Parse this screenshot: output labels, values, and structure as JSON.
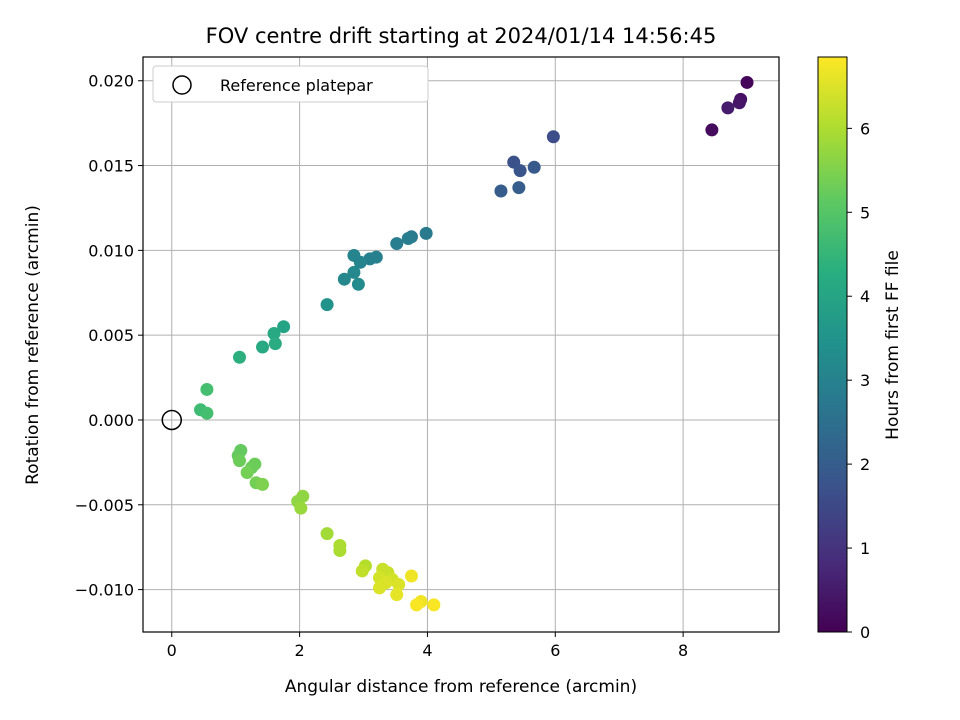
{
  "chart_data": {
    "type": "scatter",
    "title": "FOV centre drift starting at 2024/01/14 14:56:45",
    "xlabel": "Angular distance from reference (arcmin)",
    "ylabel": "Rotation from reference (arcmin)",
    "xlim": [
      -0.45,
      9.5
    ],
    "ylim": [
      -0.0125,
      0.0214
    ],
    "x_ticks": [
      0,
      2,
      4,
      6,
      8
    ],
    "y_ticks": [
      -0.01,
      -0.005,
      0.0,
      0.005,
      0.01,
      0.015,
      0.02
    ],
    "y_tick_labels": [
      "−0.010",
      "−0.005",
      "0.000",
      "0.005",
      "0.010",
      "0.015",
      "0.020"
    ],
    "grid": true,
    "legend": {
      "position": "top-left",
      "entries": [
        {
          "label": "Reference platepar",
          "marker": "open-circle",
          "x": 0,
          "y": 0
        }
      ]
    },
    "colorbar": {
      "label": "Hours from first FF file",
      "min": 0,
      "max": 6.85,
      "ticks": [
        0,
        1,
        2,
        3,
        4,
        5,
        6
      ],
      "colormap": "viridis"
    },
    "series": [
      {
        "points": [
          {
            "x": 9.0,
            "y": 0.0199,
            "c": 0.1
          },
          {
            "x": 8.9,
            "y": 0.0189,
            "c": 0.3
          },
          {
            "x": 8.88,
            "y": 0.0187,
            "c": 0.4
          },
          {
            "x": 8.7,
            "y": 0.0184,
            "c": 0.5
          },
          {
            "x": 8.45,
            "y": 0.0171,
            "c": 0.2
          },
          {
            "x": 5.97,
            "y": 0.0167,
            "c": 1.6
          },
          {
            "x": 5.35,
            "y": 0.0152,
            "c": 1.7
          },
          {
            "x": 5.45,
            "y": 0.0147,
            "c": 1.8
          },
          {
            "x": 5.67,
            "y": 0.0149,
            "c": 1.9
          },
          {
            "x": 5.15,
            "y": 0.0135,
            "c": 2.0
          },
          {
            "x": 5.43,
            "y": 0.0137,
            "c": 2.0
          },
          {
            "x": 3.98,
            "y": 0.011,
            "c": 2.8
          },
          {
            "x": 3.75,
            "y": 0.0108,
            "c": 2.8
          },
          {
            "x": 3.7,
            "y": 0.0107,
            "c": 2.9
          },
          {
            "x": 3.52,
            "y": 0.0104,
            "c": 2.9
          },
          {
            "x": 3.2,
            "y": 0.0096,
            "c": 3.0
          },
          {
            "x": 3.1,
            "y": 0.0095,
            "c": 3.0
          },
          {
            "x": 2.85,
            "y": 0.0097,
            "c": 3.1
          },
          {
            "x": 2.95,
            "y": 0.0093,
            "c": 3.1
          },
          {
            "x": 2.85,
            "y": 0.0087,
            "c": 3.2
          },
          {
            "x": 2.7,
            "y": 0.0083,
            "c": 3.2
          },
          {
            "x": 2.92,
            "y": 0.008,
            "c": 3.3
          },
          {
            "x": 2.43,
            "y": 0.0068,
            "c": 3.5
          },
          {
            "x": 1.75,
            "y": 0.0055,
            "c": 4.0
          },
          {
            "x": 1.6,
            "y": 0.0051,
            "c": 4.1
          },
          {
            "x": 1.62,
            "y": 0.0045,
            "c": 4.2
          },
          {
            "x": 1.42,
            "y": 0.0043,
            "c": 4.1
          },
          {
            "x": 1.06,
            "y": 0.0037,
            "c": 4.3
          },
          {
            "x": 0.55,
            "y": 0.0018,
            "c": 4.8
          },
          {
            "x": 0.45,
            "y": 0.0006,
            "c": 4.7
          },
          {
            "x": 0.55,
            "y": 0.0004,
            "c": 4.8
          },
          {
            "x": 1.08,
            "y": -0.0018,
            "c": 5.2
          },
          {
            "x": 1.04,
            "y": -0.0021,
            "c": 5.2
          },
          {
            "x": 1.06,
            "y": -0.0024,
            "c": 5.3
          },
          {
            "x": 1.3,
            "y": -0.0026,
            "c": 5.3
          },
          {
            "x": 1.25,
            "y": -0.0028,
            "c": 5.3
          },
          {
            "x": 1.18,
            "y": -0.0031,
            "c": 5.4
          },
          {
            "x": 1.32,
            "y": -0.0037,
            "c": 5.4
          },
          {
            "x": 1.42,
            "y": -0.0038,
            "c": 5.5
          },
          {
            "x": 2.05,
            "y": -0.0045,
            "c": 5.7
          },
          {
            "x": 1.97,
            "y": -0.0048,
            "c": 5.7
          },
          {
            "x": 2.02,
            "y": -0.0052,
            "c": 5.8
          },
          {
            "x": 2.43,
            "y": -0.0067,
            "c": 5.9
          },
          {
            "x": 2.63,
            "y": -0.0074,
            "c": 6.0
          },
          {
            "x": 2.63,
            "y": -0.0077,
            "c": 6.0
          },
          {
            "x": 3.03,
            "y": -0.0086,
            "c": 6.1
          },
          {
            "x": 2.98,
            "y": -0.0089,
            "c": 6.2
          },
          {
            "x": 3.3,
            "y": -0.0088,
            "c": 6.3
          },
          {
            "x": 3.38,
            "y": -0.009,
            "c": 6.3
          },
          {
            "x": 3.25,
            "y": -0.0093,
            "c": 6.4
          },
          {
            "x": 3.45,
            "y": -0.0094,
            "c": 6.4
          },
          {
            "x": 3.35,
            "y": -0.0096,
            "c": 6.5
          },
          {
            "x": 3.55,
            "y": -0.0097,
            "c": 6.5
          },
          {
            "x": 3.25,
            "y": -0.0099,
            "c": 6.5
          },
          {
            "x": 3.52,
            "y": -0.0103,
            "c": 6.6
          },
          {
            "x": 3.75,
            "y": -0.0092,
            "c": 6.7
          },
          {
            "x": 3.9,
            "y": -0.0107,
            "c": 6.7
          },
          {
            "x": 3.83,
            "y": -0.0109,
            "c": 6.8
          },
          {
            "x": 4.1,
            "y": -0.0109,
            "c": 6.8
          }
        ]
      }
    ]
  }
}
